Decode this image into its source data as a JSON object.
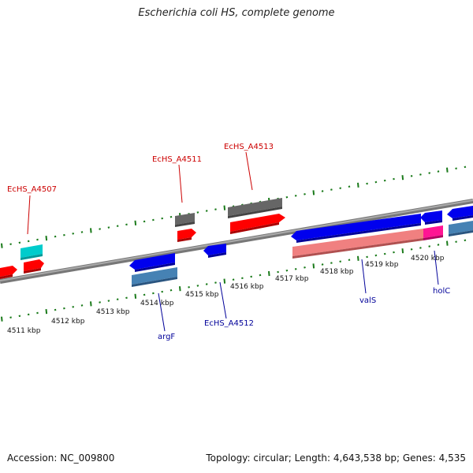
{
  "title": "Escherichia coli HS, complete genome",
  "footer": {
    "accession": "Accession: NC_009800",
    "summary": "Topology: circular; Length: 4,643,538 bp; Genes: 4,535"
  },
  "colors": {
    "forward": "#ff0000",
    "reverse": "#0000ee",
    "rna": "#00cccc",
    "pseudo": "#666666",
    "reverse_alt": "#4682b4",
    "forward_alt": "#f08080",
    "overlap": "#ff1493",
    "backbone": "#888888",
    "ticks": "#1a7a1a",
    "forward_label": "#cc0000",
    "reverse_label": "#000099"
  },
  "scale_labels": [
    "4511 kbp",
    "4512 kbp",
    "4513 kbp",
    "4514 kbp",
    "4515 kbp",
    "4516 kbp",
    "4517 kbp",
    "4518 kbp",
    "4519 kbp",
    "4520 kbp"
  ],
  "gene_labels": {
    "EcHS_A4507": "EcHS_A4507",
    "EcHS_A4511": "EcHS_A4511",
    "EcHS_A4513": "EcHS_A4513",
    "argF": "argF",
    "EcHS_A4512": "EcHS_A4512",
    "valS": "valS",
    "holC": "holC"
  }
}
